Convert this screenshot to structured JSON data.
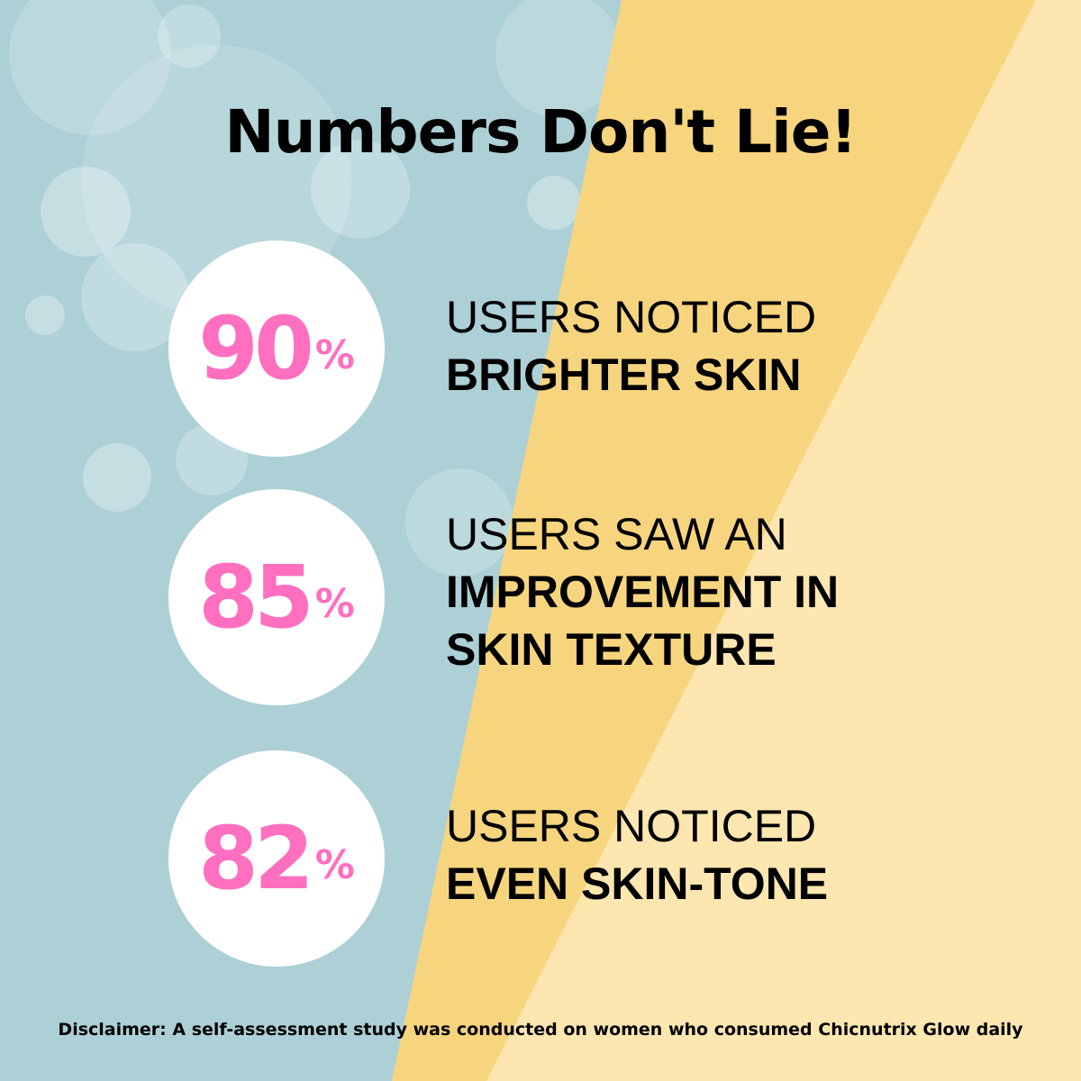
{
  "colors": {
    "blue": "#acd0d6",
    "yellow": "#f7d57e",
    "light_yellow": "#fde6b0",
    "pink": "#ff6fbf"
  },
  "title": "Numbers Don't Lie!",
  "stats": [
    {
      "value": "90",
      "unit": "%",
      "line1": "USERS NOTICED",
      "line2": "BRIGHTER SKIN",
      "line3": ""
    },
    {
      "value": "85",
      "unit": "%",
      "line1": "USERS SAW AN",
      "line2": "IMPROVEMENT IN",
      "line3": "SKIN TEXTURE"
    },
    {
      "value": "82",
      "unit": "%",
      "line1": "USERS NOTICED",
      "line2": "EVEN SKIN-TONE",
      "line3": ""
    }
  ],
  "disclaimer": "Disclaimer: A self-assessment study was conducted on women who consumed Chicnutrix Glow daily"
}
